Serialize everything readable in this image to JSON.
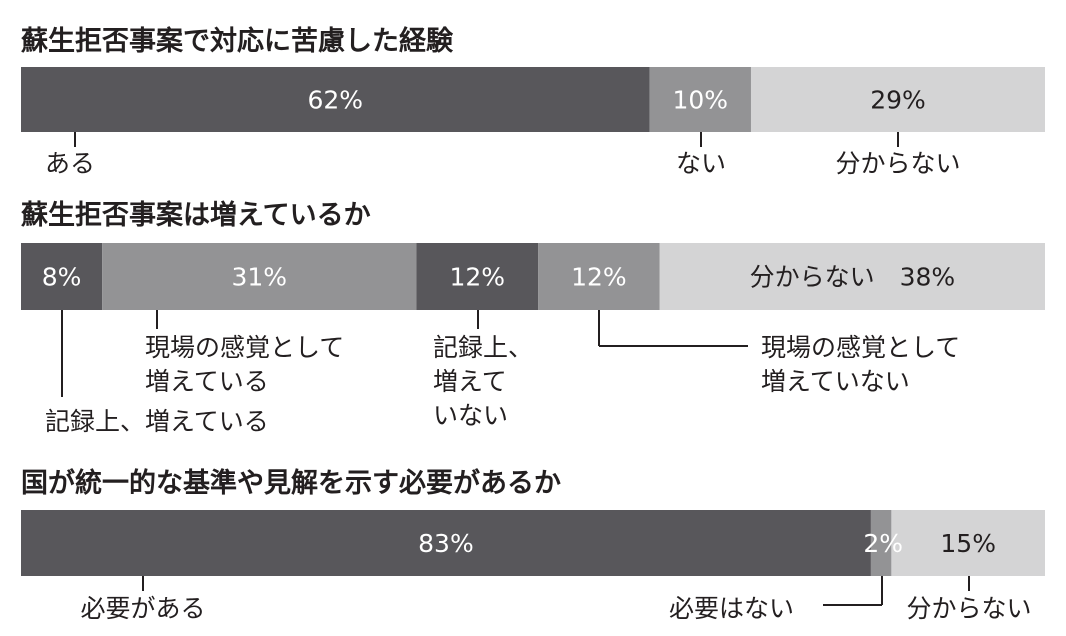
{
  "colors": {
    "dark": "#58575b",
    "mid": "#939395",
    "light": "#d4d4d5",
    "text_on_dark": "#ffffff",
    "text_on_light": "#231f20",
    "line": "#231f20"
  },
  "chart_data": [
    {
      "type": "bar",
      "orientation": "horizontal-stacked-100",
      "title": "蘇生拒否事案で対応に苦慮した経験",
      "series": [
        {
          "name": "ある",
          "value": 62,
          "value_label": "62%",
          "color": "dark"
        },
        {
          "name": "ない",
          "value": 10,
          "value_label": "10%",
          "color": "mid"
        },
        {
          "name": "分からない",
          "value": 29,
          "value_label": "29%",
          "color": "light"
        }
      ]
    },
    {
      "type": "bar",
      "orientation": "horizontal-stacked-100",
      "title": "蘇生拒否事案は増えているか",
      "series": [
        {
          "name": "記録上、増えている",
          "value": 8,
          "value_label": "8%",
          "color": "dark"
        },
        {
          "name": "現場の感覚として\n増えている",
          "value": 31,
          "value_label": "31%",
          "color": "mid"
        },
        {
          "name": "記録上、\n増えて\nいない",
          "value": 12,
          "value_label": "12%",
          "color": "dark"
        },
        {
          "name": "現場の感覚として\n増えていない",
          "value": 12,
          "value_label": "12%",
          "color": "mid"
        },
        {
          "name": "",
          "value": 38,
          "value_label": "分からない　38%",
          "color": "light"
        }
      ]
    },
    {
      "type": "bar",
      "orientation": "horizontal-stacked-100",
      "title": "国が統一的な基準や見解を示す必要があるか",
      "series": [
        {
          "name": "必要がある",
          "value": 83,
          "value_label": "83%",
          "color": "dark"
        },
        {
          "name": "必要はない",
          "value": 2,
          "value_label": "2%",
          "color": "mid"
        },
        {
          "name": "分からない",
          "value": 15,
          "value_label": "15%",
          "color": "light"
        }
      ]
    }
  ]
}
